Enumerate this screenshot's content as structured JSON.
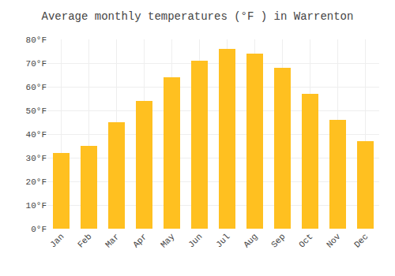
{
  "chart_data": {
    "type": "bar",
    "title": "Average monthly temperatures (°F ) in Warrenton",
    "categories": [
      "Jan",
      "Feb",
      "Mar",
      "Apr",
      "May",
      "Jun",
      "Jul",
      "Aug",
      "Sep",
      "Oct",
      "Nov",
      "Dec"
    ],
    "values": [
      32,
      35,
      45,
      54,
      64,
      71,
      76,
      74,
      68,
      57,
      46,
      37
    ],
    "color": "#FFC020",
    "ylim": [
      0,
      80
    ],
    "yticks": [
      {
        "value": 0,
        "label": "0°F"
      },
      {
        "value": 10,
        "label": "10°F"
      },
      {
        "value": 20,
        "label": "20°F"
      },
      {
        "value": 30,
        "label": "30°F"
      },
      {
        "value": 40,
        "label": "40°F"
      },
      {
        "value": 50,
        "label": "50°F"
      },
      {
        "value": 60,
        "label": "60°F"
      },
      {
        "value": 70,
        "label": "70°F"
      },
      {
        "value": 80,
        "label": "80°F"
      }
    ],
    "grid": true
  }
}
